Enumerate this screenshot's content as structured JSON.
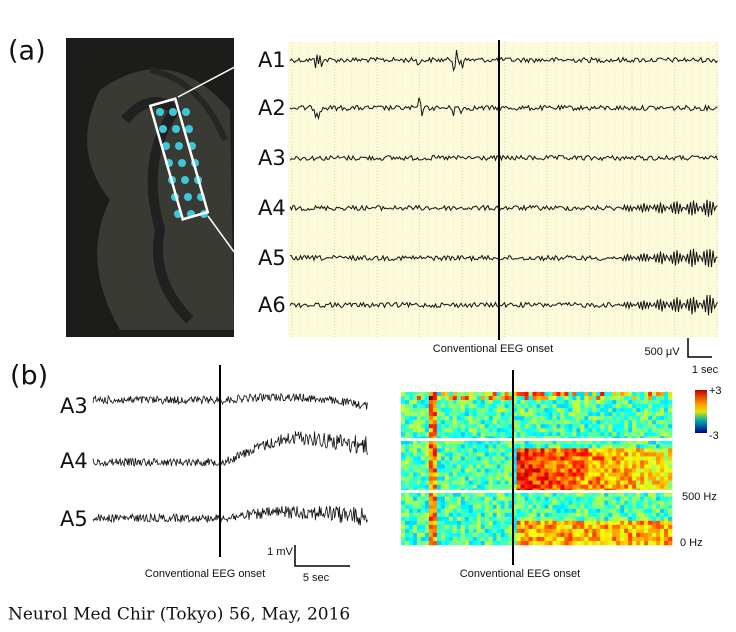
{
  "panel_a": {
    "label": "(a)",
    "channels": [
      "A1",
      "A2",
      "A3",
      "A4",
      "A5",
      "A6"
    ],
    "onset_label": "Conventional EEG onset",
    "scale_voltage": "500 μV",
    "scale_time": "1 sec"
  },
  "panel_b": {
    "label": "(b)",
    "channels": [
      "A3",
      "A4",
      "A5"
    ],
    "onset_label": "Conventional EEG onset",
    "scale_voltage": "1 mV",
    "scale_time": "5 sec",
    "spectrogram": {
      "color_max": "+3",
      "color_min": "-3",
      "freq_top": "500 Hz",
      "freq_bottom": "0 Hz",
      "onset_label": "Conventional EEG onset"
    }
  },
  "footer": "Neurol Med Chir (Tokyo) 56, May, 2016"
}
